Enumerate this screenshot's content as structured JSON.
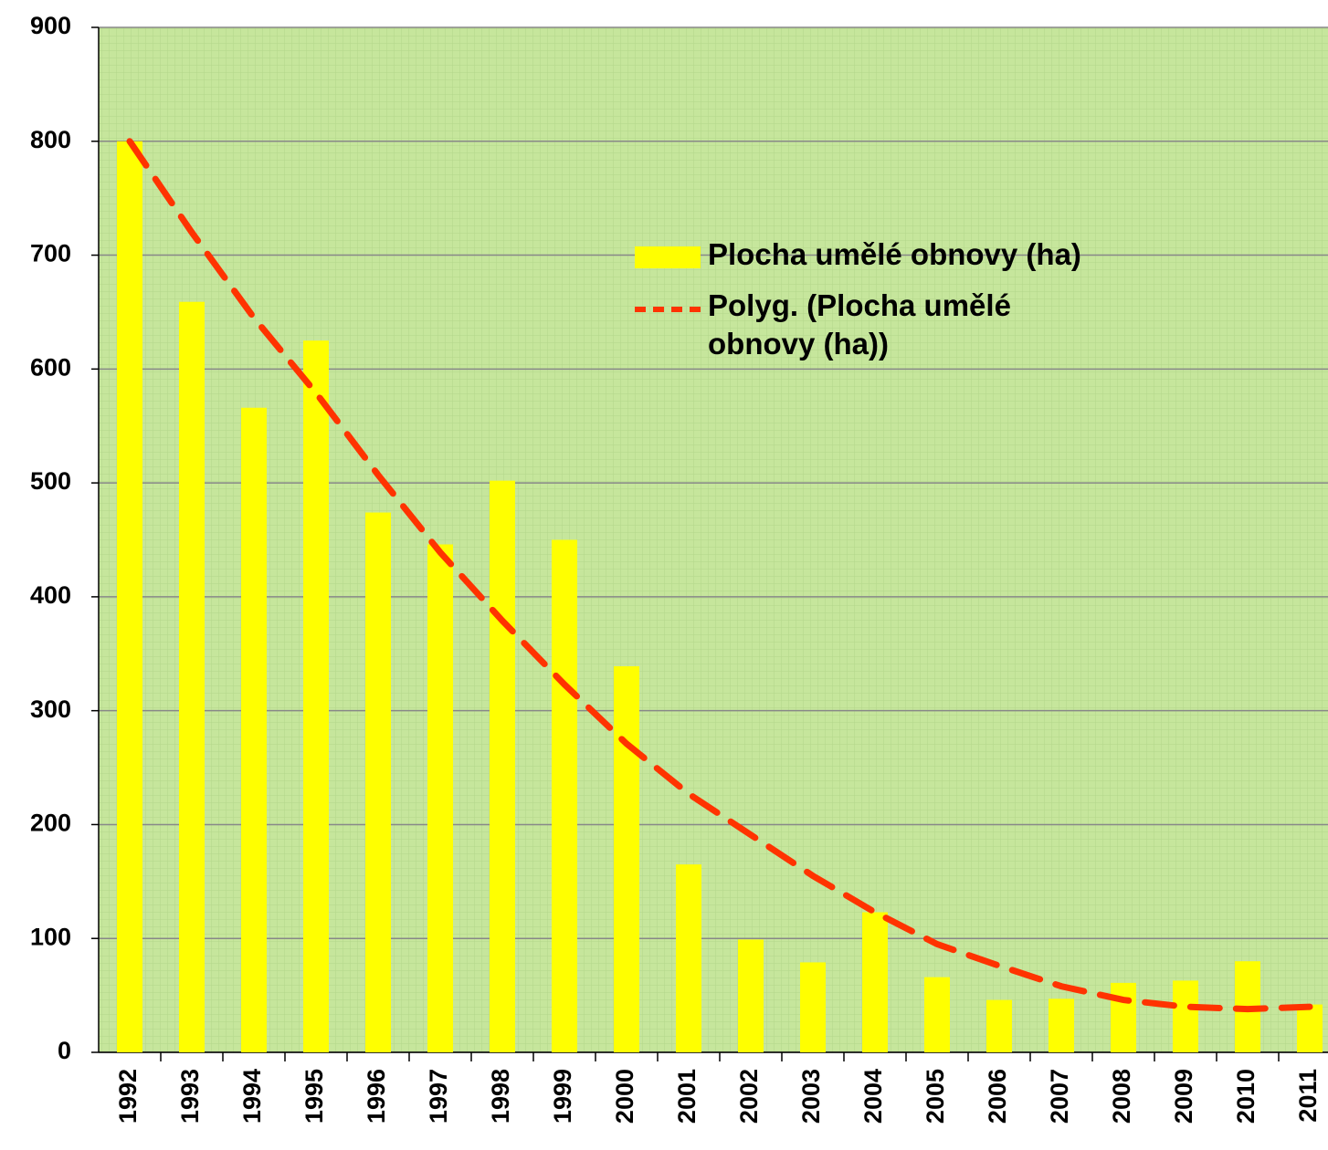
{
  "chart_data": {
    "type": "bar",
    "categories": [
      "1992",
      "1993",
      "1994",
      "1995",
      "1996",
      "1997",
      "1998",
      "1999",
      "2000",
      "2001",
      "2002",
      "2003",
      "2004",
      "2005",
      "2006",
      "2007",
      "2008",
      "2009",
      "2010",
      "2011"
    ],
    "series": [
      {
        "name": "Plocha umělé obnovy (ha)",
        "type": "bar",
        "color": "#ffff00",
        "values": [
          800,
          659,
          566,
          625,
          474,
          446,
          502,
          450,
          339,
          165,
          99,
          79,
          123,
          66,
          46,
          47,
          61,
          63,
          80,
          42
        ]
      },
      {
        "name": "Polyg. (Plocha umělé obnovy (ha))",
        "type": "line",
        "color": "#ff3300",
        "dashed": true,
        "values": [
          800,
          720,
          645,
          579,
          507,
          439,
          379,
          323,
          271,
          227,
          191,
          155,
          123,
          95,
          76,
          58,
          46,
          40,
          38,
          40
        ]
      }
    ],
    "ylim": [
      0,
      900
    ],
    "yticks": [
      0,
      100,
      200,
      300,
      400,
      500,
      600,
      700,
      800,
      900
    ],
    "grid": true,
    "background": "#c6e69c",
    "legend": "upper right"
  }
}
